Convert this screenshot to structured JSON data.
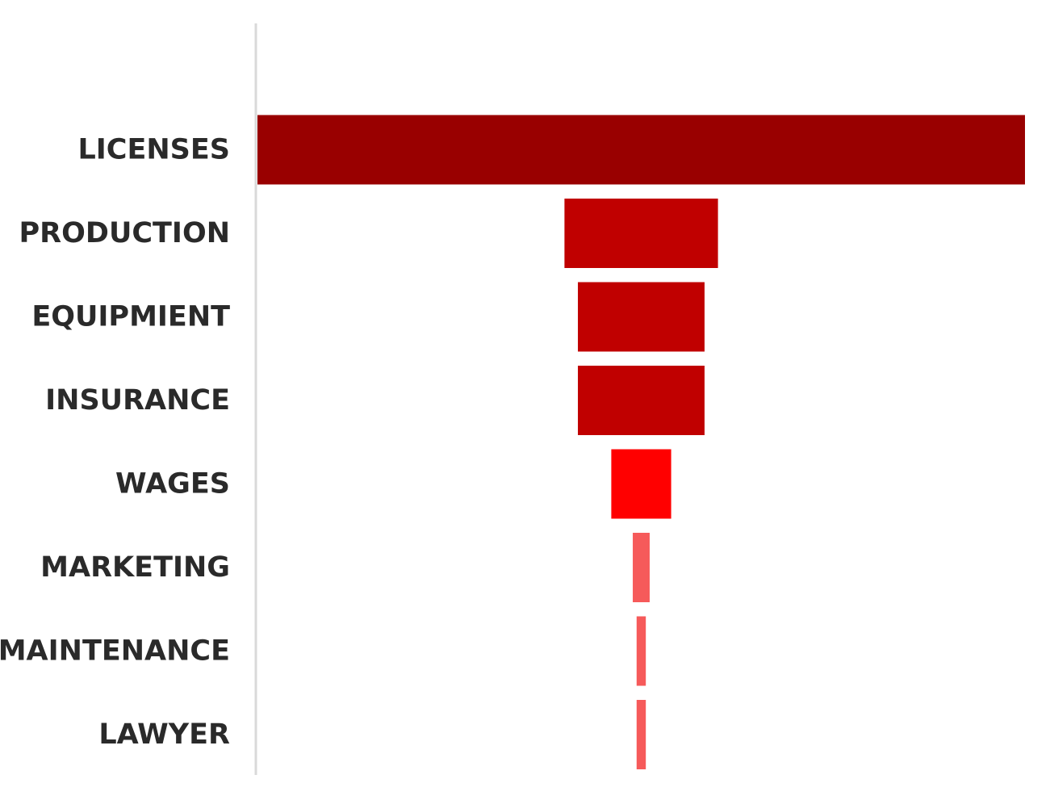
{
  "chart_data": {
    "type": "bar",
    "orientation": "horizontal",
    "layout": "funnel",
    "categories": [
      "LICENSES",
      "PRODUCTION",
      "EQUIPMIENT",
      "INSURANCE",
      "WAGES",
      "MARKETING",
      "MAINTENANCE",
      "LAWYER"
    ],
    "values": [
      100,
      20,
      16.5,
      16.5,
      7.8,
      2.2,
      1.2,
      1.2
    ],
    "colors": [
      "#990000",
      "#c00000",
      "#c00000",
      "#c00000",
      "#ff0000",
      "#f65a5a",
      "#f65a5a",
      "#f65a5a"
    ],
    "xlim": [
      0,
      100
    ],
    "grid": false,
    "legend": "none",
    "title": "",
    "xlabel": "",
    "ylabel": ""
  }
}
